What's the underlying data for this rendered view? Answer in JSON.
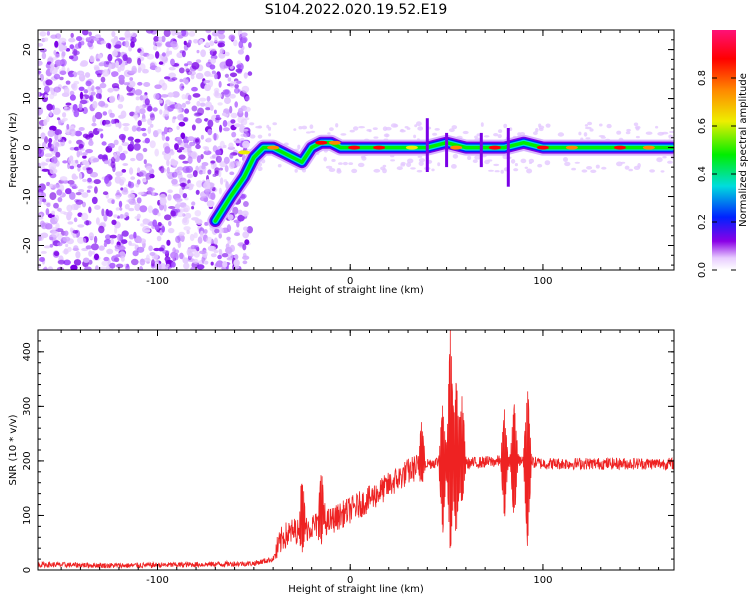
{
  "title": "S104.2022.020.19.52.E19",
  "chart_data": [
    {
      "type": "heatmap",
      "title": "S104.2022.020.19.52.E19",
      "xlabel": "Height of straight line (km)",
      "ylabel": "Frequency (Hz)",
      "xlim": [
        -162,
        168
      ],
      "ylim": [
        -25,
        24
      ],
      "xticks": [
        -100,
        0,
        100
      ],
      "yticks": [
        -20,
        -10,
        0,
        10,
        20
      ],
      "colorbar": {
        "label": "Normalized spectral amplitude",
        "range": [
          0.0,
          1.0
        ],
        "ticks": [
          0.0,
          0.2,
          0.4,
          0.6,
          0.8
        ],
        "tick_labels": [
          "0.0",
          "0.2",
          "0.4",
          "0.6",
          "0.8"
        ],
        "colors": [
          "#ffffff",
          "#8a00e6",
          "#0022ff",
          "#00dddd",
          "#00ee00",
          "#eeee00",
          "#ff8800",
          "#ff0000",
          "#ff1177"
        ]
      },
      "signal_track": {
        "x": [
          -70,
          -62,
          -55,
          -50,
          -45,
          -40,
          -35,
          -30,
          -25,
          -20,
          -15,
          -10,
          -5,
          0,
          10,
          20,
          30,
          40,
          50,
          60,
          70,
          80,
          90,
          100,
          120,
          140,
          160,
          167
        ],
        "y": [
          -15,
          -10,
          -6,
          -2,
          0,
          0,
          -1,
          -2,
          -3,
          0,
          1,
          1,
          0,
          0,
          0,
          0,
          0,
          0,
          1,
          0,
          0,
          0,
          1,
          0,
          0,
          0,
          0,
          0
        ]
      },
      "noise_region_x": [
        -162,
        -52
      ]
    },
    {
      "type": "line",
      "xlabel": "Height of straight line (km)",
      "ylabel": "SNR (10 * v/v)",
      "xlim": [
        -162,
        168
      ],
      "ylim": [
        0,
        440
      ],
      "xticks": [
        -100,
        0,
        100
      ],
      "yticks": [
        0,
        100,
        200,
        300,
        400
      ],
      "color": "#ee2222",
      "envelope": {
        "x": [
          -162,
          -120,
          -80,
          -50,
          -40,
          -35,
          -30,
          -20,
          -10,
          0,
          10,
          20,
          30,
          35,
          40,
          45,
          50,
          55,
          60,
          70,
          80,
          90,
          100,
          120,
          140,
          168
        ],
        "y": [
          10,
          8,
          10,
          12,
          20,
          60,
          70,
          80,
          90,
          110,
          130,
          155,
          180,
          190,
          195,
          198,
          200,
          200,
          195,
          198,
          200,
          200,
          195,
          195,
          195,
          195
        ]
      },
      "spikes": [
        {
          "x": 37,
          "high": 270,
          "low": 160
        },
        {
          "x": 48,
          "high": 310,
          "low": 70
        },
        {
          "x": 52,
          "high": 440,
          "low": 25
        },
        {
          "x": 55,
          "high": 350,
          "low": 60
        },
        {
          "x": 58,
          "high": 325,
          "low": 120
        },
        {
          "x": 80,
          "high": 285,
          "low": 100
        },
        {
          "x": 85,
          "high": 305,
          "low": 90
        },
        {
          "x": 92,
          "high": 335,
          "low": 45
        },
        {
          "x": -25,
          "high": 170,
          "low": 40
        },
        {
          "x": -15,
          "high": 185,
          "low": 50
        }
      ]
    }
  ]
}
